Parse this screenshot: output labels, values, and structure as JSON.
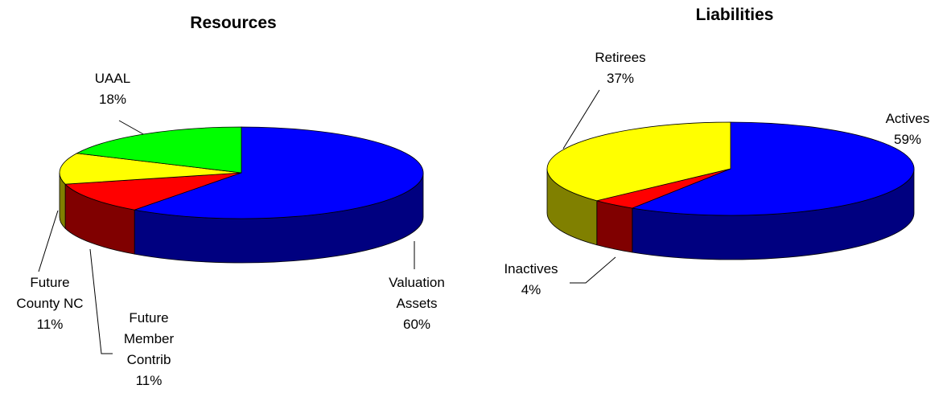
{
  "chart_data": [
    {
      "type": "pie",
      "title": "Resources",
      "categories": [
        "Valuation Assets",
        "Future Member Contrib",
        "Future County NC",
        "UAAL"
      ],
      "values": [
        60,
        11,
        11,
        18
      ],
      "value_labels": [
        "60%",
        "11%",
        "11%",
        "18%"
      ],
      "colors": [
        "#0000ff",
        "#ff0000",
        "#ffff00",
        "#00ff00"
      ]
    },
    {
      "type": "pie",
      "title": "Liabilities",
      "categories": [
        "Actives",
        "Inactives",
        "Retirees"
      ],
      "values": [
        59,
        4,
        37
      ],
      "value_labels": [
        "59%",
        "4%",
        "37%"
      ],
      "colors": [
        "#0000ff",
        "#ff0000",
        "#ffff00"
      ]
    }
  ]
}
